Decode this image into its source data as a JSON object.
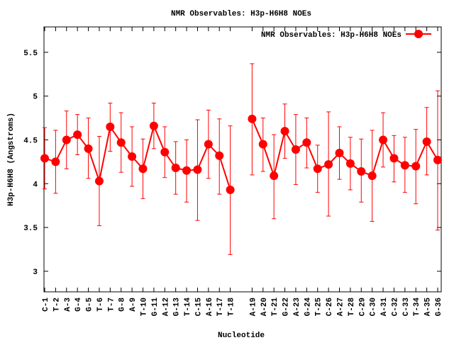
{
  "chart_data": {
    "type": "line",
    "title": "NMR Observables: H3p-H6H8 NOEs",
    "xlabel": "Nucleotide",
    "ylabel": "H3p-H6H8 (Angstroms)",
    "ylim": [
      2.765,
      5.79
    ],
    "yticks": [
      "3",
      "3.5",
      "4",
      "4.5",
      "5",
      "5.5"
    ],
    "ytick_values": [
      3,
      3.5,
      4,
      4.5,
      5,
      5.5
    ],
    "legend": "top-right",
    "grid": false,
    "color": "#ff0000",
    "categories": [
      "C-1",
      "T-2",
      "A-3",
      "G-4",
      "G-5",
      "T-6",
      "T-7",
      "G-8",
      "A-9",
      "T-10",
      "G-11",
      "A-12",
      "G-13",
      "T-14",
      "C-15",
      "A-16",
      "T-17",
      "T-18",
      "A-19",
      "A-20",
      "T-21",
      "G-22",
      "A-23",
      "G-24",
      "T-25",
      "C-26",
      "A-27",
      "T-28",
      "C-29",
      "C-30",
      "A-31",
      "C-32",
      "C-33",
      "T-34",
      "A-35",
      "G-36"
    ],
    "series": [
      {
        "name": "NMR Observables: H3p-H6H8 NOEs",
        "values": [
          4.29,
          4.25,
          4.5,
          4.56,
          4.4,
          4.03,
          4.65,
          4.47,
          4.31,
          4.17,
          4.66,
          4.36,
          4.18,
          4.15,
          4.16,
          4.45,
          4.32,
          3.93,
          4.74,
          4.45,
          4.09,
          4.6,
          4.39,
          4.47,
          4.17,
          4.22,
          4.35,
          4.23,
          4.14,
          4.09,
          4.5,
          4.29,
          4.21,
          4.2,
          4.48,
          4.27
        ],
        "err_high": [
          4.64,
          4.61,
          4.83,
          4.79,
          4.75,
          4.54,
          4.92,
          4.81,
          4.65,
          4.51,
          4.92,
          4.65,
          4.48,
          4.5,
          4.73,
          4.84,
          4.74,
          4.66,
          5.37,
          4.75,
          4.56,
          4.91,
          4.79,
          4.75,
          4.44,
          4.82,
          4.65,
          4.53,
          4.51,
          4.61,
          4.81,
          4.55,
          4.53,
          4.62,
          4.87,
          5.06
        ],
        "err_low": [
          3.94,
          3.89,
          4.17,
          4.33,
          4.06,
          3.52,
          4.37,
          4.13,
          3.97,
          3.83,
          4.4,
          4.07,
          3.88,
          3.79,
          3.58,
          4.06,
          3.88,
          3.19,
          4.1,
          4.14,
          3.6,
          4.29,
          3.99,
          4.18,
          3.9,
          3.63,
          4.05,
          3.93,
          3.79,
          3.57,
          4.19,
          4.02,
          3.9,
          3.77,
          4.1,
          3.47
        ]
      }
    ]
  }
}
